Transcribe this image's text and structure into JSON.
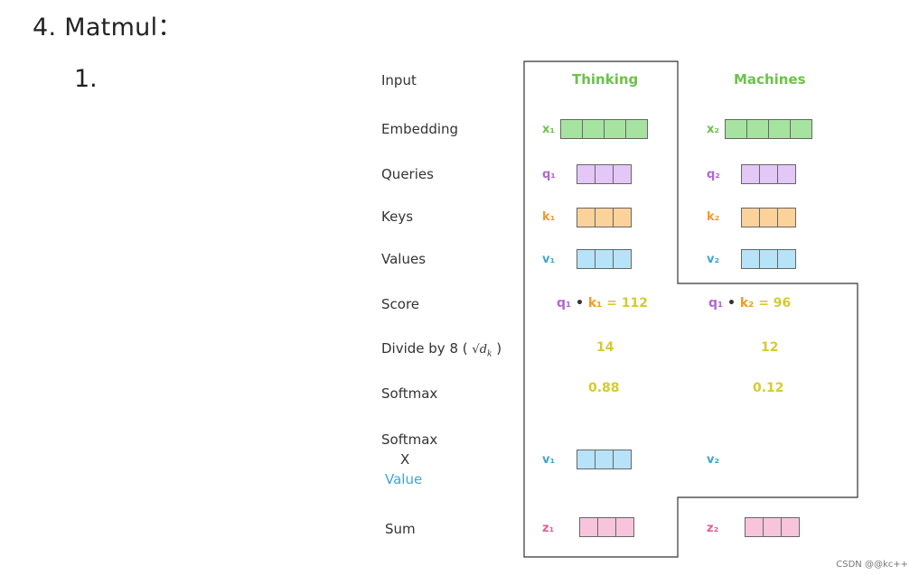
{
  "heading": "4.  Matmul：",
  "list_marker": "1.",
  "row_labels": {
    "input": "Input",
    "embedding": "Embedding",
    "queries": "Queries",
    "keys": "Keys",
    "values": "Values",
    "score": "Score",
    "divide_prefix": "Divide by 8 (",
    "divide_sqrt": "√d",
    "divide_sub": "k",
    "divide_suffix": ")",
    "softmax": "Softmax",
    "softmax_value_1": "Softmax",
    "softmax_value_x": "X",
    "softmax_value_2": "Value",
    "sum": "Sum"
  },
  "columns": [
    {
      "header": "Thinking",
      "x_label": "x₁",
      "q_label": "q₁",
      "k_label": "k₁",
      "v_label": "v₁",
      "score_q": "q₁",
      "score_dot": "•",
      "score_k": "k₁",
      "score_val": "= 112",
      "divided": "14",
      "softmax": "0.88",
      "sv_label": "v₁",
      "z_label": "z₁"
    },
    {
      "header": "Machines",
      "x_label": "x₂",
      "q_label": "q₂",
      "k_label": "k₂",
      "v_label": "v₂",
      "score_q": "q₁",
      "score_dot": "•",
      "score_k": "k₂",
      "score_val": "= 96",
      "divided": "12",
      "softmax": "0.12",
      "sv_label": "v₂",
      "z_label": "z₂"
    }
  ],
  "watermark": "CSDN @@kc++"
}
